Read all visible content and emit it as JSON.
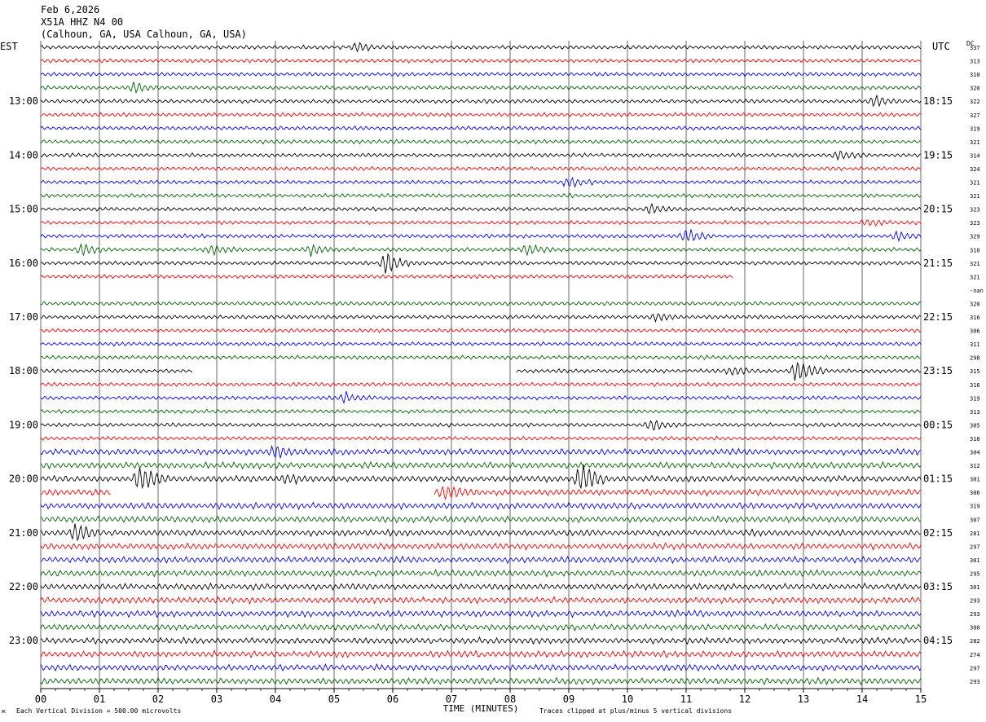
{
  "header": {
    "date": "Feb 6,2026",
    "station": "X51A HHZ N4 00",
    "location": "(Calhoun, GA, USA Calhoun, GA, USA)"
  },
  "left_zone_label": "EST",
  "right_zone_label": "UTC",
  "dc_label": "DC",
  "footer": {
    "scale_note": "Each Vertical Division =  500.00 microvolts",
    "clip_note": "Traces clipped at plus/minus 5 vertical divisions",
    "mark": "⌘"
  },
  "colors": [
    "#000000",
    "#ff0000",
    "#0000ff",
    "#006400"
  ],
  "chart_data": {
    "type": "line",
    "title": "",
    "xlabel": "TIME (MINUTES)",
    "xlim": [
      0,
      15
    ],
    "x_ticks": [
      "00",
      "01",
      "02",
      "03",
      "04",
      "05",
      "06",
      "07",
      "08",
      "09",
      "10",
      "11",
      "12",
      "13",
      "14",
      "15"
    ],
    "left_time_labels": [
      "13:00",
      "14:00",
      "15:00",
      "16:00",
      "17:00",
      "18:00",
      "19:00",
      "20:00",
      "21:00",
      "22:00",
      "23:00"
    ],
    "right_time_labels": [
      "18:15",
      "19:15",
      "20:15",
      "21:15",
      "22:15",
      "23:15",
      "00:15",
      "01:15",
      "02:15",
      "03:15",
      "04:15"
    ],
    "rows_per_hour": 4,
    "trace_count": 48,
    "dc_offsets": [
      "337",
      "313",
      "310",
      "320",
      "322",
      "327",
      "319",
      "321",
      "314",
      "324",
      "321",
      "321",
      "323",
      "323",
      "329",
      "310",
      "321",
      "321",
      "-nan",
      "320",
      "316",
      "306",
      "311",
      "298",
      "315",
      "316",
      "319",
      "313",
      "305",
      "318",
      "304",
      "312",
      "301",
      "306",
      "319",
      "307",
      "281",
      "297",
      "301",
      "295",
      "301",
      "293",
      "293",
      "300",
      "282",
      "274",
      "297",
      "293"
    ],
    "gap_rows": [
      18
    ],
    "partial_rows": [
      {
        "row": 17,
        "end_minute": 11.8
      },
      {
        "row": 24,
        "gap_start_minute": 2.6,
        "gap_end_minute": 8.1
      },
      {
        "row": 33,
        "gap_start_minute": 1.2,
        "gap_end_minute": 6.7
      }
    ],
    "events": [
      {
        "row": 0,
        "minute": 5.4,
        "amp": 1.2
      },
      {
        "row": 3,
        "minute": 1.6,
        "amp": 1.3
      },
      {
        "row": 4,
        "minute": 14.2,
        "amp": 1.5
      },
      {
        "row": 8,
        "minute": 13.6,
        "amp": 1.0
      },
      {
        "row": 10,
        "minute": 9.0,
        "amp": 1.4
      },
      {
        "row": 12,
        "minute": 10.4,
        "amp": 1.2
      },
      {
        "row": 13,
        "minute": 14.1,
        "amp": 0.9
      },
      {
        "row": 14,
        "minute": 11.0,
        "amp": 2.0
      },
      {
        "row": 14,
        "minute": 14.6,
        "amp": 1.0
      },
      {
        "row": 15,
        "minute": 0.7,
        "amp": 1.3
      },
      {
        "row": 15,
        "minute": 2.9,
        "amp": 1.3
      },
      {
        "row": 15,
        "minute": 4.6,
        "amp": 1.3
      },
      {
        "row": 15,
        "minute": 8.3,
        "amp": 1.3
      },
      {
        "row": 16,
        "minute": 5.9,
        "amp": 3.0
      },
      {
        "row": 20,
        "minute": 10.5,
        "amp": 1.0
      },
      {
        "row": 24,
        "minute": 11.8,
        "amp": 1.2
      },
      {
        "row": 24,
        "minute": 12.9,
        "amp": 3.2
      },
      {
        "row": 26,
        "minute": 5.2,
        "amp": 1.2
      },
      {
        "row": 28,
        "minute": 10.4,
        "amp": 1.5
      },
      {
        "row": 30,
        "minute": 4.0,
        "amp": 1.5
      },
      {
        "row": 32,
        "minute": 1.7,
        "amp": 4.0
      },
      {
        "row": 32,
        "minute": 9.2,
        "amp": 4.0
      },
      {
        "row": 32,
        "minute": 4.2,
        "amp": 1.2
      },
      {
        "row": 33,
        "minute": 6.9,
        "amp": 2.0
      },
      {
        "row": 36,
        "minute": 0.6,
        "amp": 2.0
      }
    ]
  }
}
